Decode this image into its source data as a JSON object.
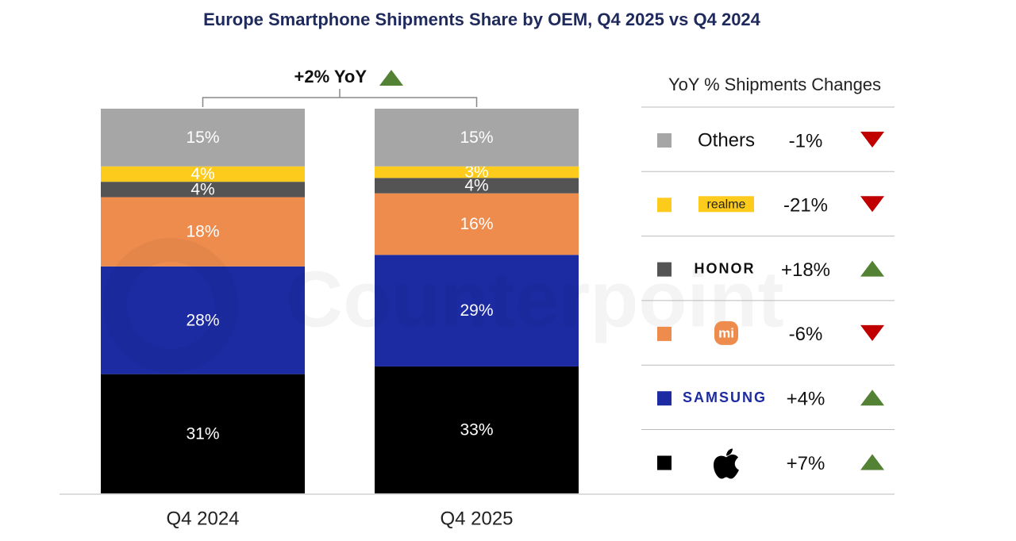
{
  "chart_data": {
    "type": "stacked-bar",
    "title": "Europe Smartphone Shipments Share by OEM, Q4 2025 vs Q4 2024",
    "watermark": "Counterpoint",
    "categories": [
      "Q4 2024",
      "Q4 2025"
    ],
    "ylim": [
      0,
      100
    ],
    "annotation": {
      "value": 2,
      "label": "+2% YoY"
    },
    "legend_title": "YoY % Shipments Changes",
    "series": [
      {
        "color": "#000000",
        "values": [
          31,
          33
        ],
        "value_labels": [
          "31%",
          "33%"
        ],
        "yoy": 7,
        "yoy_label": "+7%"
      },
      {
        "name": "SAMSUNG",
        "color": "#1c2ba2",
        "values": [
          28,
          29
        ],
        "value_labels": [
          "28%",
          "29%"
        ],
        "yoy": 4,
        "yoy_label": "+4%"
      },
      {
        "name": "mi",
        "color": "#ee8c4e",
        "values": [
          18,
          16
        ],
        "value_labels": [
          "18%",
          "16%"
        ],
        "yoy": -6,
        "yoy_label": "-6%"
      },
      {
        "name": "HONOR",
        "color": "#545454",
        "values": [
          4,
          4
        ],
        "value_labels": [
          "4%",
          "4%"
        ],
        "yoy": 18,
        "yoy_label": "+18%"
      },
      {
        "name": "realme",
        "color": "#fdcb1c",
        "values": [
          4,
          3
        ],
        "value_labels": [
          "4%",
          "3%"
        ],
        "yoy": -21,
        "yoy_label": "-21%"
      },
      {
        "name": "Others",
        "color": "#a6a6a6",
        "values": [
          15,
          15
        ],
        "value_labels": [
          "15%",
          "15%"
        ],
        "yoy": -1,
        "yoy_label": "-1%"
      }
    ]
  }
}
